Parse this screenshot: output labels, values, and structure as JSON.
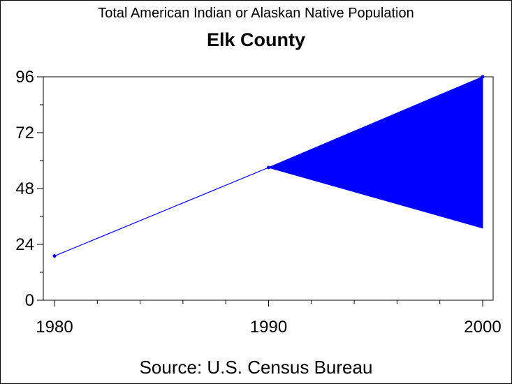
{
  "chart_data": {
    "type": "line",
    "title": "Total American Indian or Alaskan Native Population",
    "subtitle": "Elk County",
    "source": "Source: U.S. Census Bureau",
    "xlabel": "",
    "ylabel": "",
    "xlim": [
      1980,
      2000
    ],
    "ylim": [
      0,
      96
    ],
    "x_ticks": [
      1980,
      1990,
      2000
    ],
    "y_ticks": [
      0,
      24,
      48,
      72,
      96
    ],
    "series": [
      {
        "x": [
          1980,
          1990,
          2000
        ],
        "values": [
          19,
          57,
          96
        ]
      }
    ],
    "shaded_range": {
      "x": [
        1990,
        2000
      ],
      "low": [
        57,
        31
      ],
      "high": [
        57,
        96
      ]
    },
    "colors": {
      "series": "#0000ff",
      "axis": "#000000"
    },
    "grid": false,
    "legend": "none"
  }
}
